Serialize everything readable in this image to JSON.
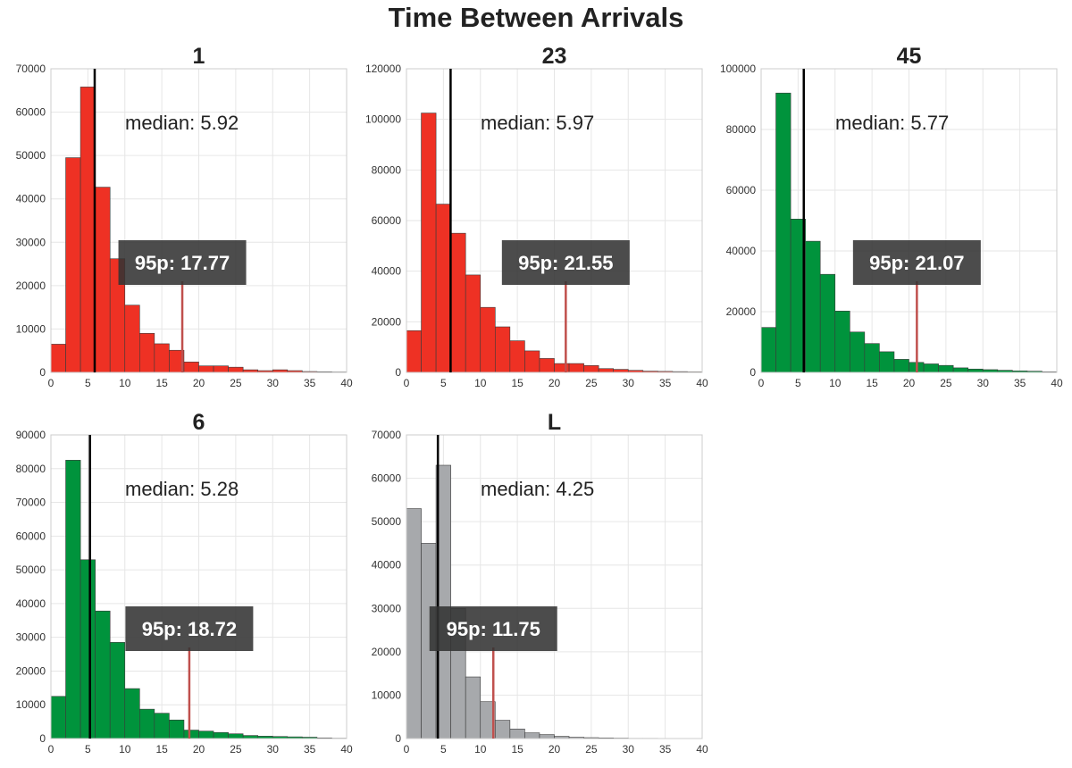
{
  "title": "Time Between Arrivals",
  "colors": {
    "red": "#ee3124",
    "green": "#00933c",
    "gray": "#a7a9ac",
    "median_line": "#000000",
    "p95_line": "#c0504d",
    "p95_box": "#333333",
    "grid": "#e6e6e6"
  },
  "chart_data": [
    {
      "type": "bar",
      "title": "1",
      "color": "red",
      "xlim": [
        0,
        40
      ],
      "ylim": [
        0,
        70000
      ],
      "xticks": [
        0,
        5,
        10,
        15,
        20,
        25,
        30,
        35,
        40
      ],
      "yticks": [
        0,
        10000,
        20000,
        30000,
        40000,
        50000,
        60000,
        70000
      ],
      "bin_width": 2,
      "bins": [
        0,
        2,
        4,
        6,
        8,
        10,
        12,
        14,
        16,
        18,
        20,
        22,
        24,
        26,
        28,
        30,
        32,
        34,
        36,
        38
      ],
      "values": [
        6500,
        49500,
        65800,
        42700,
        26200,
        15500,
        9000,
        6600,
        5100,
        2400,
        1500,
        1500,
        1200,
        600,
        400,
        600,
        400,
        200,
        150,
        100
      ],
      "median": 5.92,
      "median_label": "median: 5.92",
      "p95": 17.77,
      "p95_label": "95p: 17.77"
    },
    {
      "type": "bar",
      "title": "23",
      "color": "red",
      "xlim": [
        0,
        40
      ],
      "ylim": [
        0,
        120000
      ],
      "xticks": [
        0,
        5,
        10,
        15,
        20,
        25,
        30,
        35,
        40
      ],
      "yticks": [
        0,
        20000,
        40000,
        60000,
        80000,
        100000,
        120000
      ],
      "bin_width": 2,
      "bins": [
        0,
        2,
        4,
        6,
        8,
        10,
        12,
        14,
        16,
        18,
        20,
        22,
        24,
        26,
        28,
        30,
        32,
        34,
        36,
        38
      ],
      "values": [
        16500,
        102500,
        66500,
        55000,
        38500,
        25700,
        18000,
        12500,
        8500,
        5500,
        3500,
        3500,
        2700,
        1500,
        1200,
        800,
        500,
        400,
        300,
        200
      ],
      "median": 5.97,
      "median_label": "median: 5.97",
      "p95": 21.55,
      "p95_label": "95p: 21.55"
    },
    {
      "type": "bar",
      "title": "45",
      "color": "green",
      "xlim": [
        0,
        40
      ],
      "ylim": [
        0,
        100000
      ],
      "xticks": [
        0,
        5,
        10,
        15,
        20,
        25,
        30,
        35,
        40
      ],
      "yticks": [
        0,
        20000,
        40000,
        60000,
        80000,
        100000
      ],
      "bin_width": 2,
      "bins": [
        0,
        2,
        4,
        6,
        8,
        10,
        12,
        14,
        16,
        18,
        20,
        22,
        24,
        26,
        28,
        30,
        32,
        34,
        36,
        38
      ],
      "values": [
        14800,
        92000,
        50500,
        43200,
        32300,
        20200,
        13300,
        9500,
        6800,
        4300,
        3300,
        2800,
        2300,
        1500,
        1100,
        900,
        700,
        500,
        400,
        200
      ],
      "median": 5.77,
      "median_label": "median: 5.77",
      "p95": 21.07,
      "p95_label": "95p: 21.07"
    },
    {
      "type": "bar",
      "title": "6",
      "color": "green",
      "xlim": [
        0,
        40
      ],
      "ylim": [
        0,
        90000
      ],
      "xticks": [
        0,
        5,
        10,
        15,
        20,
        25,
        30,
        35,
        40
      ],
      "yticks": [
        0,
        10000,
        20000,
        30000,
        40000,
        50000,
        60000,
        70000,
        80000,
        90000
      ],
      "bin_width": 2,
      "bins": [
        0,
        2,
        4,
        6,
        8,
        10,
        12,
        14,
        16,
        18,
        20,
        22,
        24,
        26,
        28,
        30,
        32,
        34,
        36,
        38
      ],
      "values": [
        12500,
        82500,
        53000,
        37800,
        28500,
        14800,
        8700,
        7500,
        5500,
        2500,
        2200,
        1800,
        1400,
        900,
        700,
        600,
        500,
        400,
        200,
        100
      ],
      "median": 5.28,
      "median_label": "median: 5.28",
      "p95": 18.72,
      "p95_label": "95p: 18.72"
    },
    {
      "type": "bar",
      "title": "L",
      "color": "gray",
      "xlim": [
        0,
        40
      ],
      "ylim": [
        0,
        70000
      ],
      "xticks": [
        0,
        5,
        10,
        15,
        20,
        25,
        30,
        35,
        40
      ],
      "yticks": [
        0,
        10000,
        20000,
        30000,
        40000,
        50000,
        60000,
        70000
      ],
      "bin_width": 2,
      "bins": [
        0,
        2,
        4,
        6,
        8,
        10,
        12,
        14,
        16,
        18,
        20,
        22,
        24,
        26,
        28,
        30,
        32,
        34,
        36,
        38
      ],
      "values": [
        53000,
        45000,
        63000,
        30000,
        14200,
        8500,
        4200,
        2200,
        1300,
        900,
        500,
        300,
        200,
        150,
        100,
        50,
        50,
        0,
        0,
        0
      ],
      "median": 4.25,
      "median_label": "median: 4.25",
      "p95": 11.75,
      "p95_label": "95p: 11.75"
    }
  ]
}
